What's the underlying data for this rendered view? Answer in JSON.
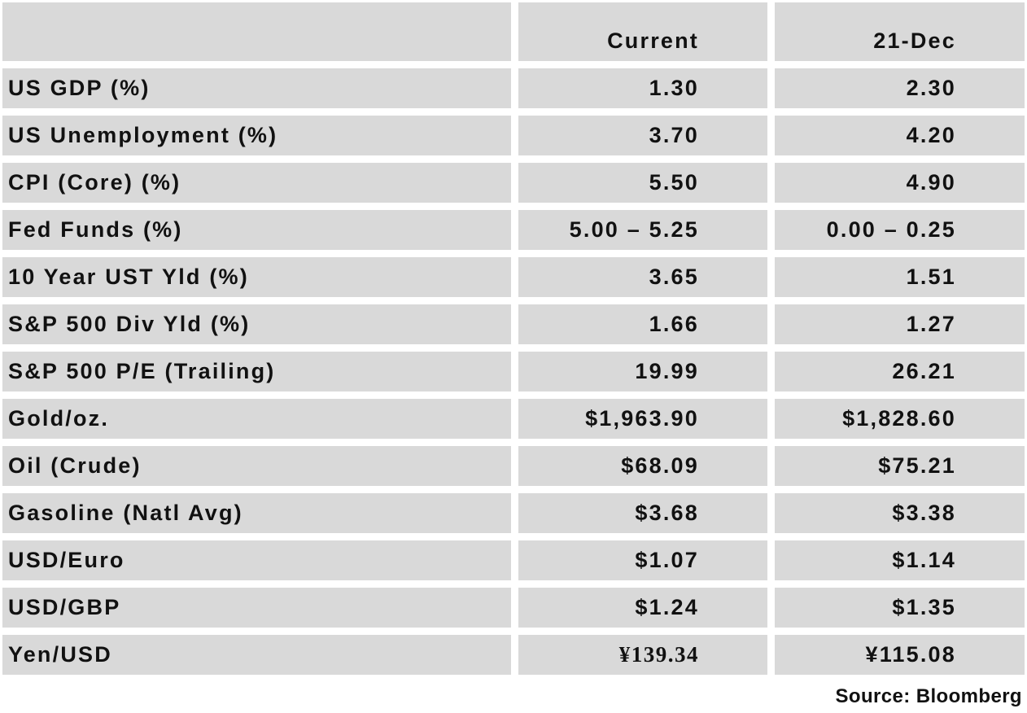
{
  "table": {
    "headers": [
      "",
      "Current",
      "21-Dec"
    ],
    "rows": [
      {
        "label": "US GDP (%)",
        "current": "1.30",
        "prior": "2.30"
      },
      {
        "label": "US Unemployment (%)",
        "current": "3.70",
        "prior": "4.20"
      },
      {
        "label": "CPI (Core) (%)",
        "current": "5.50",
        "prior": "4.90"
      },
      {
        "label": "Fed Funds (%)",
        "current": "5.00 – 5.25",
        "prior": "0.00 – 0.25"
      },
      {
        "label": "10 Year UST Yld (%)",
        "current": "3.65",
        "prior": "1.51"
      },
      {
        "label": "S&P 500 Div Yld (%)",
        "current": "1.66",
        "prior": "1.27"
      },
      {
        "label": "S&P 500 P/E (Trailing)",
        "current": "19.99",
        "prior": "26.21"
      },
      {
        "label": "Gold/oz.",
        "current": "$1,963.90",
        "prior": "$1,828.60"
      },
      {
        "label": "Oil (Crude)",
        "current": "$68.09",
        "prior": "$75.21"
      },
      {
        "label": "Gasoline (Natl Avg)",
        "current": "$3.68",
        "prior": "$3.38"
      },
      {
        "label": "USD/Euro",
        "current": "$1.07",
        "prior": "$1.14"
      },
      {
        "label": "USD/GBP",
        "current": "$1.24",
        "prior": "$1.35"
      },
      {
        "label": "Yen/USD",
        "current": "¥139.34",
        "prior": "¥115.08"
      }
    ]
  },
  "source": "Source: Bloomberg",
  "colors": {
    "cell_background": "#d9d9d9",
    "text": "#111111",
    "page_background": "#ffffff"
  }
}
